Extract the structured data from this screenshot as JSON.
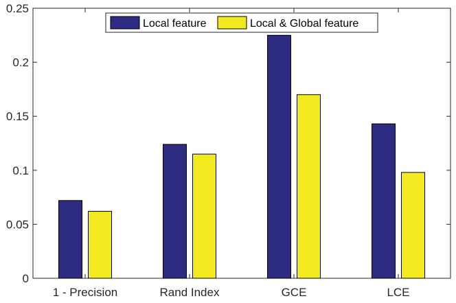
{
  "chart_data": {
    "type": "bar",
    "categories": [
      "1 - Precision",
      "Rand Index",
      "GCE",
      "LCE"
    ],
    "series": [
      {
        "name": "Local feature",
        "color": "#2e2c82",
        "values": [
          0.072,
          0.124,
          0.225,
          0.143
        ]
      },
      {
        "name": "Local & Global feature",
        "color": "#f2ea1f",
        "values": [
          0.062,
          0.115,
          0.17,
          0.098
        ]
      }
    ],
    "title": "",
    "xlabel": "",
    "ylabel": "",
    "ylim": [
      0,
      0.25
    ],
    "yticks": [
      0,
      0.05,
      0.1,
      0.15,
      0.2,
      0.25
    ],
    "ytick_labels": [
      "0",
      "0.05",
      "0.1",
      "0.15",
      "0.2",
      "0.25"
    ],
    "legend_position": "top-center",
    "grid": false
  }
}
